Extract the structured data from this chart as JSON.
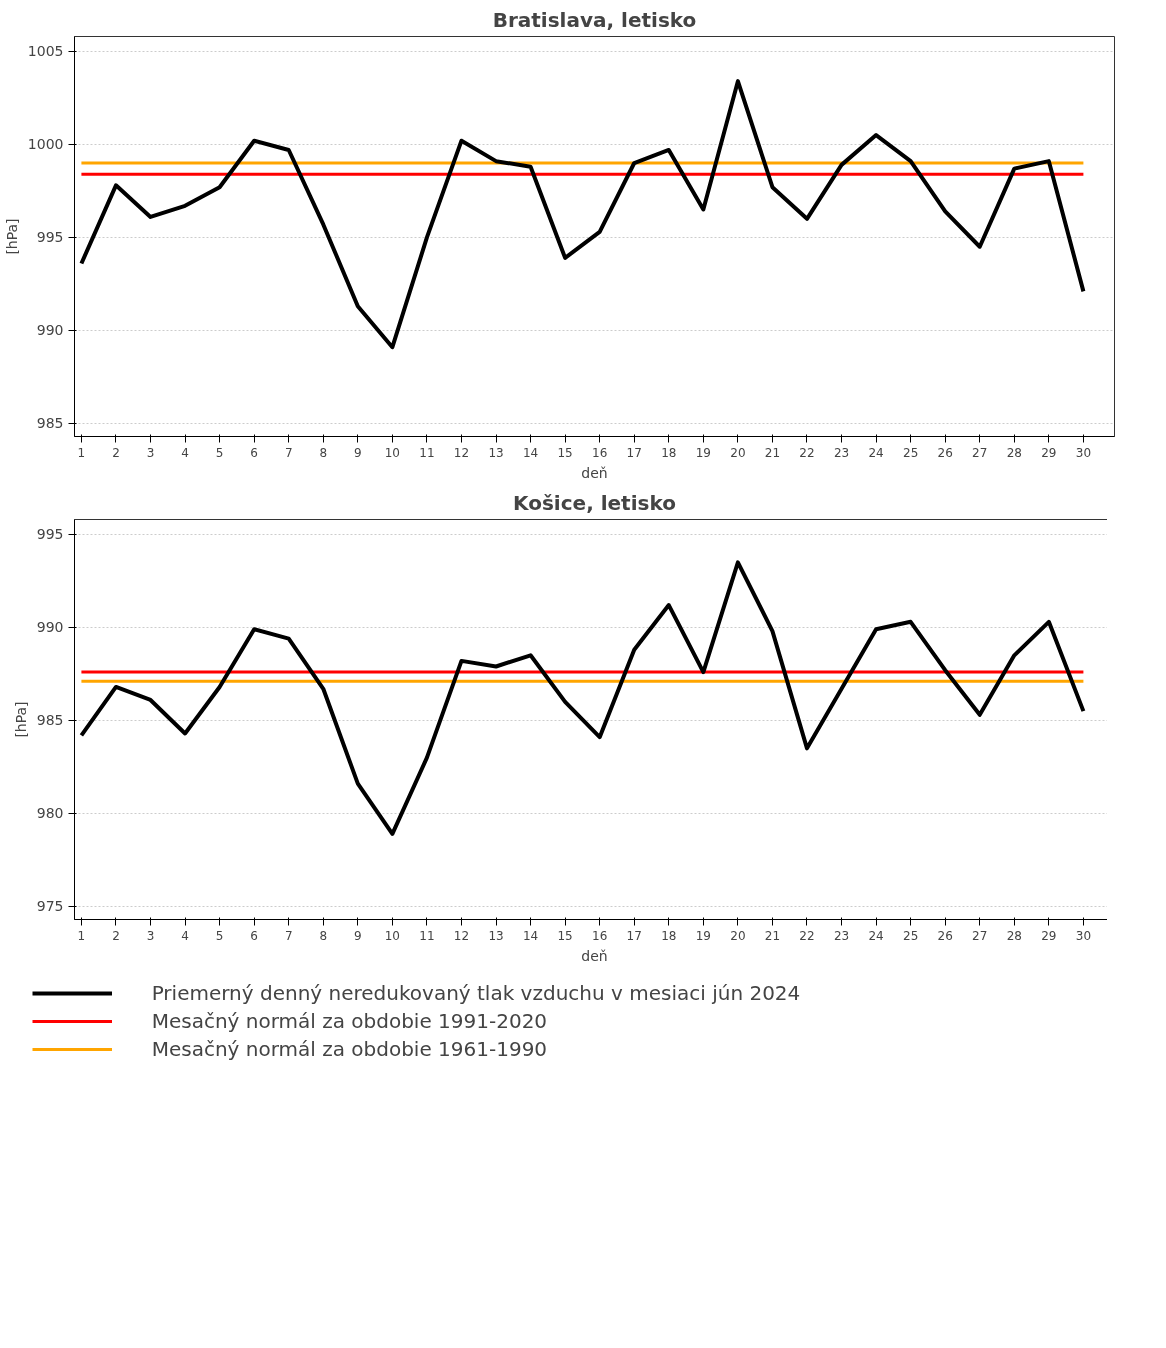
{
  "chart_data": [
    {
      "type": "line",
      "title": "Bratislava, letisko",
      "xlabel": "deň",
      "ylabel": "[hPa]",
      "x": [
        1,
        2,
        3,
        4,
        5,
        6,
        7,
        8,
        9,
        10,
        11,
        12,
        13,
        14,
        15,
        16,
        17,
        18,
        19,
        20,
        21,
        22,
        23,
        24,
        25,
        26,
        27,
        28,
        29,
        30
      ],
      "xlim": [
        0.8,
        30.9
      ],
      "xticks": [
        1,
        2,
        3,
        4,
        5,
        6,
        7,
        8,
        9,
        10,
        11,
        12,
        13,
        14,
        15,
        16,
        17,
        18,
        19,
        20,
        21,
        22,
        23,
        24,
        25,
        26,
        27,
        28,
        29,
        30
      ],
      "ylim": [
        984.3,
        1005.8
      ],
      "yticks": [
        985,
        990,
        995,
        1000,
        1005
      ],
      "grid": "y",
      "line_style": "solid",
      "series": [
        {
          "color": "#000000",
          "values": [
            993.6,
            997.8,
            996.1,
            996.7,
            997.7,
            1000.2,
            999.7,
            995.7,
            991.3,
            989.1,
            995.0,
            1000.2,
            999.1,
            998.8,
            993.9,
            995.3,
            999.0,
            999.7,
            996.5,
            1003.4,
            997.7,
            996.0,
            998.9,
            1000.5,
            999.1,
            996.4,
            994.5,
            998.7,
            999.1,
            992.1
          ]
        }
      ],
      "ref_lines": [
        {
          "axis": "y",
          "value": 998.4,
          "color": "#ff0000"
        },
        {
          "axis": "y",
          "value": 999.0,
          "color": "#ffa500"
        }
      ]
    },
    {
      "type": "line",
      "title": "Košice, letisko",
      "xlabel": "deň",
      "ylabel": "[hPa]",
      "x": [
        1,
        2,
        3,
        4,
        5,
        6,
        7,
        8,
        9,
        10,
        11,
        12,
        13,
        14,
        15,
        16,
        17,
        18,
        19,
        20,
        21,
        22,
        23,
        24,
        25,
        26,
        27,
        28,
        29,
        30
      ],
      "xlim": [
        0.8,
        30.9
      ],
      "xticks": [
        1,
        2,
        3,
        4,
        5,
        6,
        7,
        8,
        9,
        10,
        11,
        12,
        13,
        14,
        15,
        16,
        17,
        18,
        19,
        20,
        21,
        22,
        23,
        24,
        25,
        26,
        27,
        28,
        29,
        30
      ],
      "ylim": [
        974.3,
        995.8
      ],
      "yticks": [
        975,
        980,
        985,
        990,
        995
      ],
      "grid": "y",
      "line_style": "solid",
      "legend": "bottom",
      "series": [
        {
          "name": "Priemerný denný neredukovaný tlak vzduchu v mesiaci jún 2024",
          "color": "#000000",
          "values": [
            984.2,
            986.8,
            986.1,
            984.3,
            986.8,
            989.9,
            989.4,
            986.7,
            981.6,
            978.9,
            983.0,
            988.2,
            987.9,
            988.5,
            986.0,
            984.1,
            988.8,
            991.2,
            987.6,
            993.5,
            989.8,
            983.5,
            986.7,
            989.9,
            990.3,
            987.7,
            985.3,
            988.5,
            990.3,
            985.5
          ]
        }
      ],
      "ref_lines": [
        {
          "axis": "y",
          "value": 987.6,
          "color": "#ff0000",
          "label": "Mesačný normál za obdobie 1991-2020"
        },
        {
          "axis": "y",
          "value": 987.1,
          "color": "#ffa500",
          "label": "Mesačný normál za obdobie 1961-1990"
        }
      ]
    }
  ]
}
